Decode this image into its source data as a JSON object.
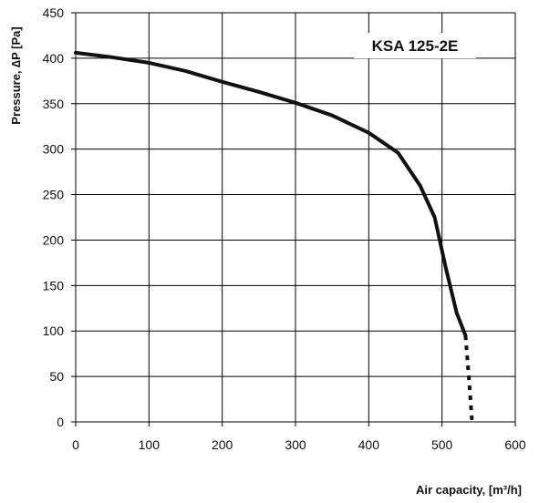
{
  "chart_data": {
    "type": "line",
    "title": "",
    "annotation": "KSA 125-2E",
    "xlabel": "Air capacity, [m³/h]",
    "ylabel": "Pressure, ∆P [Pa]",
    "xlim": [
      0,
      600
    ],
    "ylim": [
      0,
      450
    ],
    "xticks": [
      0,
      100,
      200,
      300,
      400,
      500,
      600
    ],
    "yticks": [
      0,
      50,
      100,
      150,
      200,
      250,
      300,
      350,
      400,
      450
    ],
    "grid": true,
    "series": [
      {
        "style": "solid",
        "x": [
          0,
          50,
          100,
          150,
          200,
          250,
          300,
          350,
          400,
          440,
          470,
          490,
          505,
          520,
          532
        ],
        "y": [
          406,
          401,
          395,
          386,
          374,
          363,
          351,
          337,
          318,
          296,
          260,
          225,
          170,
          120,
          95
        ]
      },
      {
        "style": "dotted",
        "x": [
          532,
          537,
          541
        ],
        "y": [
          95,
          45,
          0
        ]
      }
    ]
  }
}
